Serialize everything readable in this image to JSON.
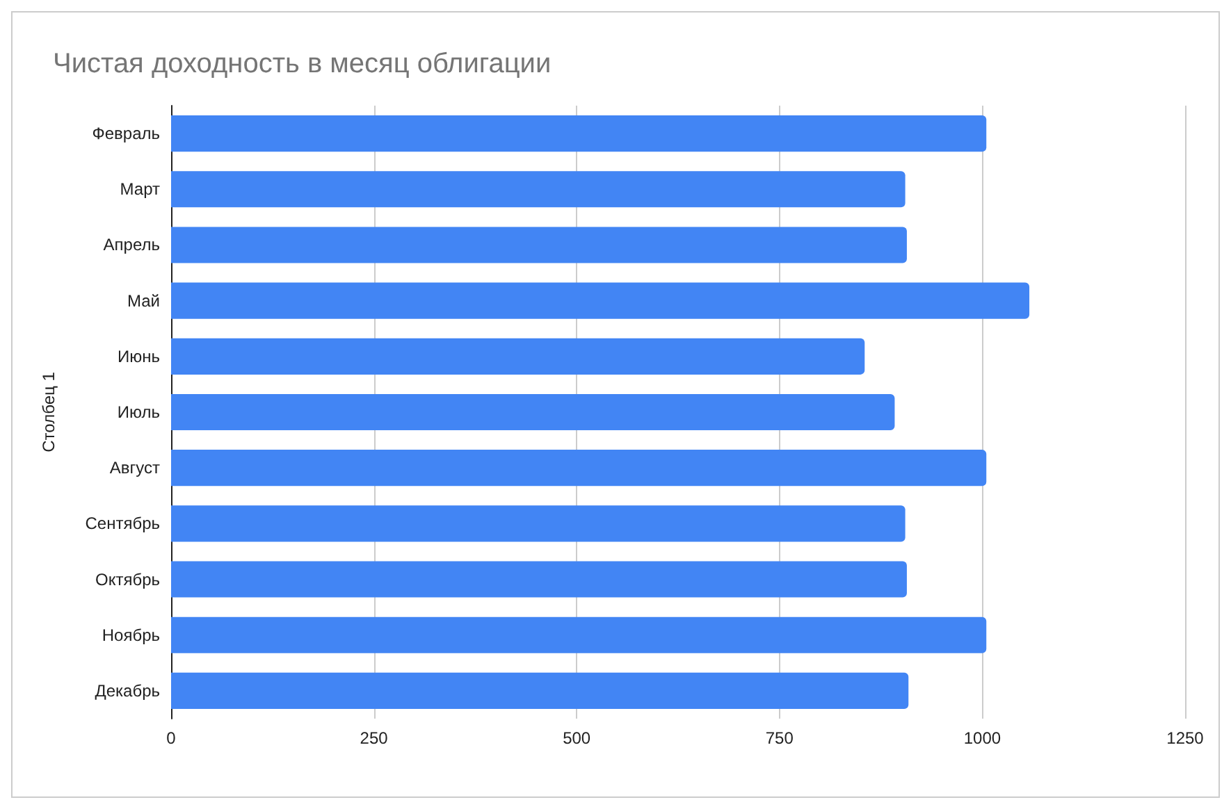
{
  "chart_data": {
    "type": "bar",
    "orientation": "horizontal",
    "title": "Чистая доходность в месяц облигации",
    "ylabel": "Столбец 1",
    "categories": [
      "Февраль",
      "Март",
      "Апрель",
      "Май",
      "Июнь",
      "Июль",
      "Август",
      "Сентябрь",
      "Октябрь",
      "Ноябрь",
      "Декабрь"
    ],
    "values": [
      1005,
      905,
      907,
      1058,
      855,
      892,
      1005,
      905,
      907,
      1005,
      909
    ],
    "color": "#4285f4",
    "xlim": [
      0,
      1250
    ],
    "xticks": [
      0,
      250,
      500,
      750,
      1000,
      1250
    ],
    "grid": "x"
  }
}
